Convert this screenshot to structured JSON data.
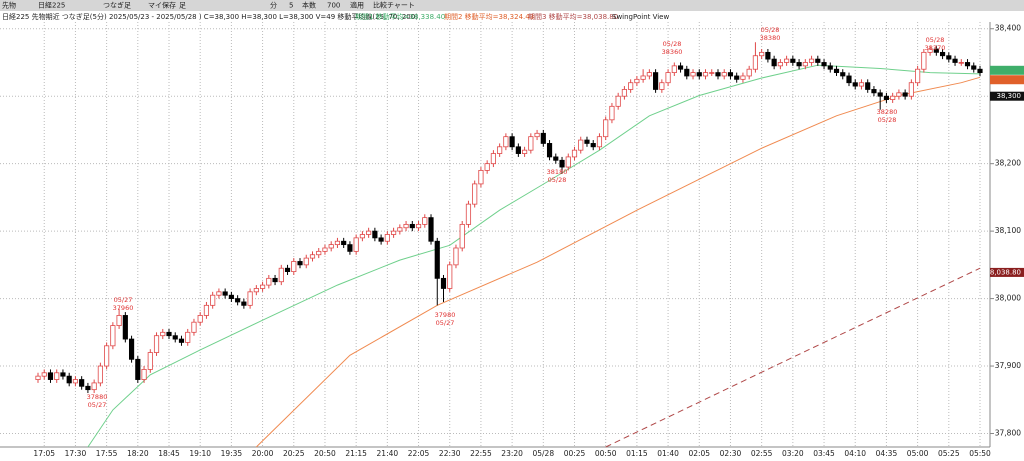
{
  "toolbar": [
    "先物",
    "日経225",
    "つなぎ足",
    "マイ保存",
    "足",
    "分",
    "5",
    "本数",
    "700",
    "適用",
    "比較チャート"
  ],
  "chart_data": {
    "type": "candlestick",
    "title": "日経225 先物期近 つなぎ足(5分) 2025/05/23 - 2025/05/28 ) C=38,300 H=38,300 L=38,300 V=49 移動平均線(25, 70, 200)",
    "subtitle": "SwingPoint View",
    "up_color": "#e04848",
    "down_color": "#000000",
    "categories": [
      null,
      "17:05",
      null,
      null,
      null,
      null,
      "17:30",
      null,
      null,
      null,
      null,
      "17:55",
      null,
      null,
      null,
      null,
      "18:20",
      null,
      null,
      null,
      null,
      "18:45",
      null,
      null,
      null,
      null,
      "19:10",
      null,
      null,
      null,
      null,
      "19:35",
      null,
      null,
      null,
      null,
      "20:00",
      null,
      null,
      null,
      null,
      "20:25",
      null,
      null,
      null,
      null,
      "20:50",
      null,
      null,
      null,
      null,
      "21:15",
      null,
      null,
      null,
      null,
      "21:40",
      null,
      null,
      null,
      null,
      "22:05",
      null,
      null,
      null,
      null,
      "22:30",
      null,
      null,
      null,
      null,
      "22:55",
      null,
      null,
      null,
      null,
      "23:20",
      null,
      null,
      null,
      null,
      "05/28",
      null,
      null,
      null,
      null,
      "00:25",
      null,
      null,
      null,
      null,
      "00:50",
      null,
      null,
      null,
      null,
      "01:15",
      null,
      null,
      null,
      null,
      "01:40",
      null,
      null,
      null,
      null,
      "02:05",
      null,
      null,
      null,
      null,
      "02:30",
      null,
      null,
      null,
      null,
      "02:55",
      null,
      null,
      null,
      null,
      "03:20",
      null,
      null,
      null,
      null,
      "03:45",
      null,
      null,
      null,
      null,
      "04:10",
      null,
      null,
      null,
      null,
      "04:35",
      null,
      null,
      null,
      null,
      "05:00",
      null,
      null,
      null,
      null,
      "05:25",
      null,
      null,
      null,
      null,
      "05:50"
    ],
    "ohlc": [
      [
        37880,
        37890,
        37875,
        37885
      ],
      [
        37885,
        37895,
        37880,
        37890
      ],
      [
        37890,
        37895,
        37875,
        37880
      ],
      [
        37880,
        37895,
        37875,
        37890
      ],
      [
        37890,
        37895,
        37880,
        37885
      ],
      [
        37885,
        37890,
        37870,
        37875
      ],
      [
        37875,
        37885,
        37870,
        37880
      ],
      [
        37880,
        37885,
        37865,
        37870
      ],
      [
        37870,
        37875,
        37860,
        37865
      ],
      [
        37865,
        37880,
        37860,
        37875
      ],
      [
        37875,
        37905,
        37870,
        37900
      ],
      [
        37900,
        37935,
        37895,
        37930
      ],
      [
        37930,
        37965,
        37925,
        37960
      ],
      [
        37960,
        37985,
        37955,
        37975
      ],
      [
        37975,
        37980,
        37935,
        37940
      ],
      [
        37940,
        37945,
        37905,
        37910
      ],
      [
        37910,
        37915,
        37875,
        37880
      ],
      [
        37880,
        37900,
        37875,
        37895
      ],
      [
        37895,
        37925,
        37890,
        37920
      ],
      [
        37920,
        37950,
        37915,
        37945
      ],
      [
        37945,
        37955,
        37940,
        37950
      ],
      [
        37950,
        37955,
        37940,
        37945
      ],
      [
        37945,
        37950,
        37935,
        37940
      ],
      [
        37940,
        37945,
        37930,
        37935
      ],
      [
        37935,
        37955,
        37930,
        37950
      ],
      [
        37950,
        37970,
        37945,
        37965
      ],
      [
        37965,
        37980,
        37960,
        37975
      ],
      [
        37975,
        37995,
        37970,
        37990
      ],
      [
        37990,
        38010,
        37985,
        38005
      ],
      [
        38005,
        38015,
        38000,
        38010
      ],
      [
        38010,
        38015,
        38000,
        38005
      ],
      [
        38005,
        38010,
        37995,
        38000
      ],
      [
        38000,
        38005,
        37990,
        37995
      ],
      [
        37995,
        38000,
        37985,
        37990
      ],
      [
        37990,
        38015,
        37985,
        38010
      ],
      [
        38010,
        38020,
        38005,
        38015
      ],
      [
        38015,
        38025,
        38010,
        38020
      ],
      [
        38020,
        38035,
        38015,
        38030
      ],
      [
        38030,
        38035,
        38020,
        38025
      ],
      [
        38025,
        38050,
        38020,
        38045
      ],
      [
        38045,
        38050,
        38035,
        38040
      ],
      [
        38040,
        38060,
        38035,
        38055
      ],
      [
        38055,
        38060,
        38045,
        38050
      ],
      [
        38050,
        38065,
        38045,
        38060
      ],
      [
        38060,
        38070,
        38055,
        38065
      ],
      [
        38065,
        38075,
        38060,
        38070
      ],
      [
        38070,
        38080,
        38065,
        38075
      ],
      [
        38075,
        38085,
        38070,
        38080
      ],
      [
        38080,
        38090,
        38075,
        38085
      ],
      [
        38085,
        38090,
        38075,
        38080
      ],
      [
        38080,
        38085,
        38065,
        38070
      ],
      [
        38070,
        38095,
        38065,
        38090
      ],
      [
        38090,
        38100,
        38085,
        38095
      ],
      [
        38095,
        38105,
        38090,
        38100
      ],
      [
        38100,
        38105,
        38085,
        38090
      ],
      [
        38090,
        38095,
        38080,
        38085
      ],
      [
        38085,
        38100,
        38080,
        38095
      ],
      [
        38095,
        38105,
        38090,
        38100
      ],
      [
        38100,
        38110,
        38095,
        38105
      ],
      [
        38105,
        38115,
        38100,
        38110
      ],
      [
        38110,
        38115,
        38100,
        38105
      ],
      [
        38105,
        38115,
        38100,
        38110
      ],
      [
        38110,
        38125,
        38105,
        38120
      ],
      [
        38120,
        38125,
        38080,
        38085
      ],
      [
        38085,
        38090,
        37990,
        38030
      ],
      [
        38030,
        38035,
        37995,
        38015
      ],
      [
        38015,
        38055,
        38010,
        38050
      ],
      [
        38050,
        38080,
        38045,
        38075
      ],
      [
        38075,
        38115,
        38070,
        38110
      ],
      [
        38110,
        38145,
        38105,
        38140
      ],
      [
        38140,
        38175,
        38135,
        38170
      ],
      [
        38170,
        38195,
        38165,
        38190
      ],
      [
        38190,
        38205,
        38185,
        38200
      ],
      [
        38200,
        38220,
        38195,
        38215
      ],
      [
        38215,
        38230,
        38210,
        38225
      ],
      [
        38225,
        38245,
        38220,
        38240
      ],
      [
        38240,
        38245,
        38220,
        38225
      ],
      [
        38225,
        38230,
        38210,
        38215
      ],
      [
        38215,
        38225,
        38210,
        38220
      ],
      [
        38220,
        38245,
        38215,
        38240
      ],
      [
        38240,
        38250,
        38235,
        38245
      ],
      [
        38245,
        38250,
        38225,
        38230
      ],
      [
        38230,
        38235,
        38205,
        38210
      ],
      [
        38210,
        38215,
        38200,
        38205
      ],
      [
        38205,
        38210,
        38185,
        38195
      ],
      [
        38195,
        38215,
        38190,
        38210
      ],
      [
        38210,
        38225,
        38205,
        38220
      ],
      [
        38220,
        38240,
        38215,
        38235
      ],
      [
        38235,
        38240,
        38225,
        38230
      ],
      [
        38230,
        38235,
        38220,
        38225
      ],
      [
        38225,
        38245,
        38220,
        38240
      ],
      [
        38240,
        38270,
        38235,
        38265
      ],
      [
        38265,
        38290,
        38260,
        38285
      ],
      [
        38285,
        38305,
        38280,
        38300
      ],
      [
        38300,
        38315,
        38295,
        38310
      ],
      [
        38310,
        38325,
        38305,
        38320
      ],
      [
        38320,
        38330,
        38315,
        38325
      ],
      [
        38325,
        38340,
        38320,
        38330
      ],
      [
        38330,
        38340,
        38325,
        38335
      ],
      [
        38335,
        38340,
        38305,
        38310
      ],
      [
        38310,
        38325,
        38305,
        38320
      ],
      [
        38320,
        38340,
        38315,
        38335
      ],
      [
        38335,
        38350,
        38330,
        38345
      ],
      [
        38345,
        38350,
        38335,
        38340
      ],
      [
        38340,
        38345,
        38325,
        38330
      ],
      [
        38330,
        38340,
        38325,
        38335
      ],
      [
        38335,
        38340,
        38325,
        38330
      ],
      [
        38330,
        38340,
        38325,
        38335
      ],
      [
        38335,
        38340,
        38330,
        38335
      ],
      [
        38335,
        38340,
        38325,
        38330
      ],
      [
        38330,
        38340,
        38325,
        38335
      ],
      [
        38335,
        38340,
        38325,
        38330
      ],
      [
        38330,
        38335,
        38320,
        38325
      ],
      [
        38325,
        38335,
        38320,
        38330
      ],
      [
        38330,
        38345,
        38325,
        38340
      ],
      [
        38340,
        38380,
        38335,
        38360
      ],
      [
        38360,
        38370,
        38355,
        38365
      ],
      [
        38365,
        38370,
        38350,
        38355
      ],
      [
        38355,
        38360,
        38340,
        38345
      ],
      [
        38345,
        38355,
        38340,
        38350
      ],
      [
        38350,
        38360,
        38345,
        38355
      ],
      [
        38355,
        38360,
        38345,
        38350
      ],
      [
        38350,
        38355,
        38340,
        38345
      ],
      [
        38345,
        38355,
        38340,
        38350
      ],
      [
        38350,
        38360,
        38345,
        38355
      ],
      [
        38355,
        38360,
        38345,
        38350
      ],
      [
        38350,
        38355,
        38340,
        38345
      ],
      [
        38345,
        38350,
        38335,
        38340
      ],
      [
        38340,
        38345,
        38330,
        38335
      ],
      [
        38335,
        38340,
        38325,
        38330
      ],
      [
        38330,
        38335,
        38315,
        38320
      ],
      [
        38320,
        38325,
        38310,
        38315
      ],
      [
        38315,
        38325,
        38310,
        38320
      ],
      [
        38320,
        38325,
        38305,
        38310
      ],
      [
        38310,
        38315,
        38300,
        38305
      ],
      [
        38305,
        38310,
        38280,
        38300
      ],
      [
        38300,
        38305,
        38290,
        38295
      ],
      [
        38295,
        38305,
        38290,
        38300
      ],
      [
        38300,
        38310,
        38295,
        38305
      ],
      [
        38305,
        38310,
        38295,
        38300
      ],
      [
        38300,
        38325,
        38295,
        38320
      ],
      [
        38320,
        38345,
        38315,
        38340
      ],
      [
        38340,
        38370,
        38335,
        38365
      ],
      [
        38365,
        38375,
        38360,
        38370
      ],
      [
        38370,
        38375,
        38360,
        38365
      ],
      [
        38365,
        38370,
        38355,
        38360
      ],
      [
        38360,
        38365,
        38350,
        38355
      ],
      [
        38355,
        38360,
        38345,
        38350
      ],
      [
        38350,
        38355,
        38345,
        38350
      ],
      [
        38350,
        38355,
        38340,
        38345
      ],
      [
        38345,
        38350,
        38335,
        38340
      ],
      [
        38340,
        38345,
        38330,
        38335
      ]
    ],
    "lines": [
      {
        "name": "期間1 移動平均=38,338.40",
        "color": "#6fd08c",
        "style": "solid",
        "x": [
          8,
          12,
          18,
          26,
          36,
          48,
          58,
          66,
          74,
          82,
          90,
          98,
          106,
          116,
          125,
          135,
          143,
          151
        ],
        "values": [
          37780,
          37835,
          37887,
          37924,
          37968,
          38020,
          38057,
          38079,
          38131,
          38175,
          38220,
          38271,
          38301,
          38327,
          38346,
          38341,
          38335,
          38333
        ]
      },
      {
        "name": "期間2 移動平均=38,324.43",
        "color": "#f08a50",
        "style": "solid",
        "x": [
          35,
          50,
          64,
          80,
          96,
          116,
          128,
          138,
          148,
          151
        ],
        "values": [
          37780,
          37916,
          37990,
          38054,
          38131,
          38223,
          38271,
          38301,
          38320,
          38328
        ]
      },
      {
        "name": "期間3 移動平均=38,038.80",
        "color": "#b04848",
        "style": "dashed",
        "x": [
          91,
          121,
          151
        ],
        "values": [
          37780,
          37913,
          38045
        ]
      }
    ],
    "annotations": [
      [
        "05/27",
        "37960"
      ],
      [
        "37880",
        "05/27"
      ],
      [
        "37980",
        "05/27"
      ],
      [
        "38180",
        "05/28"
      ],
      [
        "05/28",
        "38360"
      ],
      [
        "05/28",
        "38380"
      ],
      [
        "38280",
        "05/28"
      ],
      [
        "05/28",
        "38370"
      ]
    ],
    "price_markers": [
      {
        "value": 38300,
        "label": "38,300",
        "color": "#111111"
      },
      {
        "value": 38338.4,
        "color": "#3fae6a"
      },
      {
        "value": 38324.43,
        "color": "#e0602a"
      },
      {
        "value": 38038.8,
        "label": "38,038.80",
        "color": "#8a1e1e"
      }
    ],
    "ylim": [
      37780,
      38410
    ],
    "yticks": [
      {
        "value": 37800,
        "label": "37,800"
      },
      {
        "value": 37900,
        "label": "37,900"
      },
      {
        "value": 38000,
        "label": "38,000"
      },
      {
        "value": 38100,
        "label": "38,100"
      },
      {
        "value": 38200,
        "label": "38,200"
      },
      {
        "value": 38300,
        "label": "38,300"
      },
      {
        "value": 38400,
        "label": "38,400"
      }
    ],
    "grid": true
  }
}
